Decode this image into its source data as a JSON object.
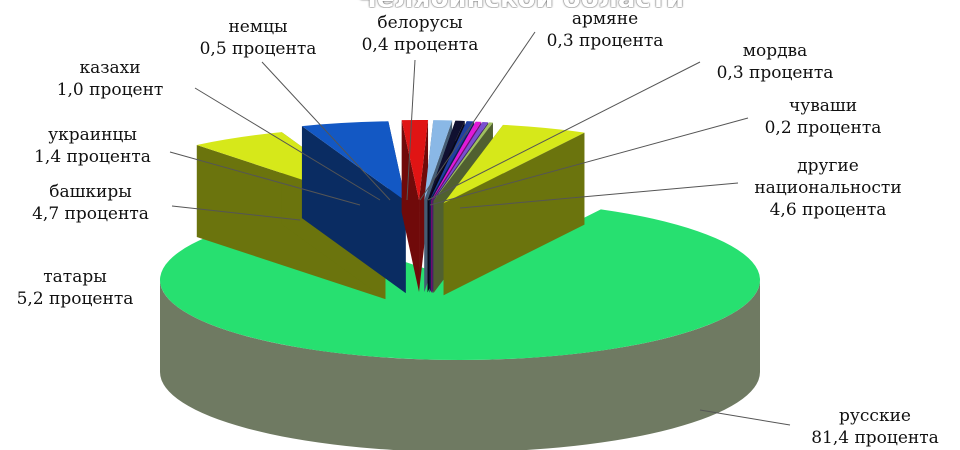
{
  "chart_data": {
    "type": "pie",
    "title": "Челябинской области",
    "labels_text": {
      "nemtsy": [
        "немцы",
        "0,5 процента"
      ],
      "belorusy": [
        "белорусы",
        "0,4 процента"
      ],
      "armyane": [
        "армяне",
        "0,3 процента"
      ],
      "mordva": [
        "мордва",
        "0,3 процента"
      ],
      "kazakhi": [
        "казахи",
        "1,0 процент"
      ],
      "chuvashi": [
        "чуваши",
        "0,2 процента"
      ],
      "ukraintsy": [
        "украинцы",
        "1,4 процента"
      ],
      "drugie": [
        "другие",
        "национальности",
        "4,6 процента"
      ],
      "bashkiry": [
        "башкиры",
        "4,7 процента"
      ],
      "tatary": [
        "татары",
        "5,2 процента"
      ],
      "russkie": [
        "русские",
        "81,4 процента"
      ]
    },
    "slices": [
      {
        "key": "russkie",
        "value": 81.4,
        "color": "#27e070"
      },
      {
        "key": "tatary",
        "value": 5.2,
        "color": "#d6e81a"
      },
      {
        "key": "bashkiry",
        "value": 4.7,
        "color": "#1358c4"
      },
      {
        "key": "ukraintsy",
        "value": 1.4,
        "color": "#e01414"
      },
      {
        "key": "kazakhi",
        "value": 1.0,
        "color": "#8ab8e6"
      },
      {
        "key": "nemtsy",
        "value": 0.5,
        "color": "#101030"
      },
      {
        "key": "belorusy",
        "value": 0.4,
        "color": "#2040a0"
      },
      {
        "key": "armyane",
        "value": 0.3,
        "color": "#e01ad8"
      },
      {
        "key": "mordva",
        "value": 0.3,
        "color": "#7a4fd0"
      },
      {
        "key": "chuvashi",
        "value": 0.2,
        "color": "#a0c060"
      },
      {
        "key": "drugie",
        "value": 4.6,
        "color": "#d6e81a"
      }
    ]
  }
}
